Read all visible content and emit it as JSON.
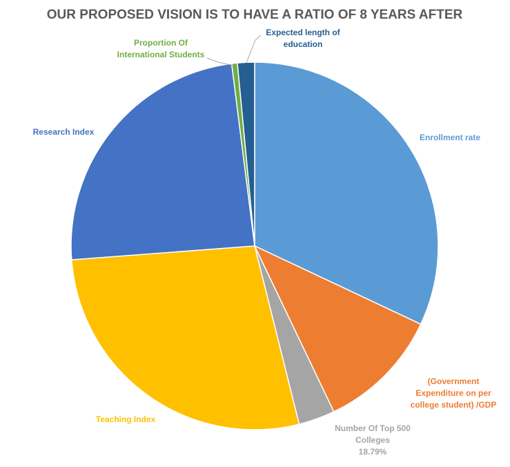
{
  "chart_data": {
    "type": "pie",
    "title": "OUR PROPOSED VISION IS TO HAVE A RATIO OF 8 YEARS AFTER",
    "start_angle_deg": 0,
    "direction": "clockwise",
    "slices": [
      {
        "name": "Enrollment rate",
        "label_lines": [
          "Enrollment rate"
        ],
        "value": 32.0,
        "color": "#5B9BD5"
      },
      {
        "name": "(Government Expenditure on per college student) /GDP",
        "label_lines": [
          "(Government",
          "Expenditure on per",
          "college student) /GDP"
        ],
        "value": 10.9,
        "color": "#ED7D31"
      },
      {
        "name": "Number Of Top 500 Colleges",
        "label_lines": [
          "Number Of Top 500",
          "Colleges",
          "18.79%"
        ],
        "value": 3.2,
        "color": "#A5A5A5"
      },
      {
        "name": "Teaching Index",
        "label_lines": [
          "Teaching Index"
        ],
        "value": 27.7,
        "color": "#FFC000"
      },
      {
        "name": "Research Index",
        "label_lines": [
          "Research Index"
        ],
        "value": 24.2,
        "color": "#4472C4"
      },
      {
        "name": "Proportion Of International Students",
        "label_lines": [
          "Proportion Of",
          "International Students"
        ],
        "value": 0.5,
        "color": "#70AD47"
      },
      {
        "name": "Expected length of education",
        "label_lines": [
          "Expected length of",
          "education"
        ],
        "value": 1.5,
        "color": "#255E91"
      }
    ]
  },
  "label_colors": [
    "#5B9BD5",
    "#ED7D31",
    "#A5A5A5",
    "#FFC000",
    "#4472C4",
    "#70AD47",
    "#255E91"
  ]
}
